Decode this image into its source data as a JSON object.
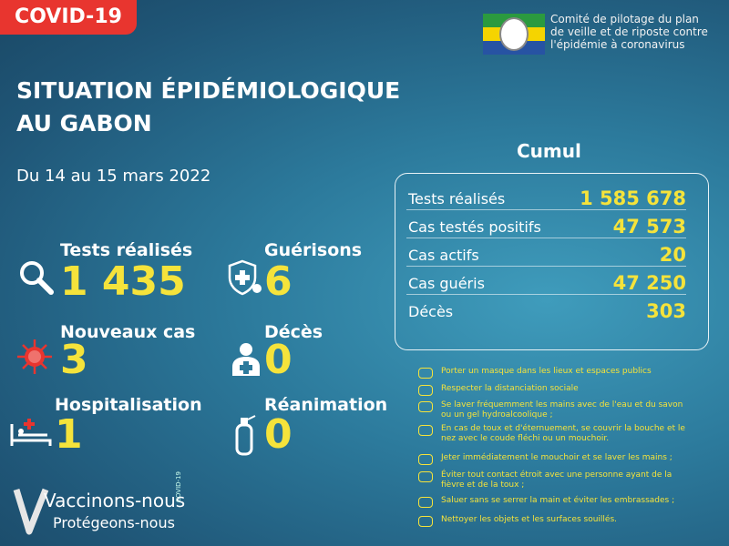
{
  "badge": "COVID-19",
  "organization": {
    "lines": [
      "Comité de pilotage du plan",
      "de veille et de riposte contre",
      "l'épidémie à coronavirus"
    ]
  },
  "title": {
    "lines": [
      "SITUATION ÉPIDÉMIOLOGIQUE",
      "AU GABON"
    ]
  },
  "date": "Du 14 au 15 mars 2022",
  "daily": [
    {
      "label": "Tests réalisés",
      "value": "1 435"
    },
    {
      "label": "Guérisons",
      "value": "6"
    },
    {
      "label": "Nouveaux cas",
      "value": "3"
    },
    {
      "label": "Décès",
      "value": "0"
    },
    {
      "label": "Hospitalisation",
      "value": "1"
    },
    {
      "label": "Réanimation",
      "value": "0"
    }
  ],
  "cumul": {
    "title": "Cumul",
    "rows": [
      {
        "label": "Tests réalisés",
        "value": "1 585 678"
      },
      {
        "label": "Cas testés positifs",
        "value": "47 573"
      },
      {
        "label": "Cas actifs",
        "value": "20"
      },
      {
        "label": "Cas guéris",
        "value": "47 250"
      },
      {
        "label": "Décès",
        "value": "303"
      }
    ]
  },
  "prevention": [
    "Porter un masque dans les lieux et espaces publics",
    "Respecter la distanciation sociale",
    "Se laver fréquemment les mains avec de l'eau et du savon ou un gel hydroalcoolique ;",
    "En cas de toux et d'éternuement, se couvrir la bouche et le nez avec le coude fléchi ou un mouchoir.",
    "Jeter immédiatement le mouchoir et se laver les mains ;",
    "Éviter tout contact étroit avec une personne ayant de la fièvre et de la toux ;",
    "Saluer sans se serrer la main et éviter les embrassades ;",
    "Nettoyer les objets et les surfaces souillés."
  ],
  "campaign": {
    "line1": "Vaccinons-nous",
    "line2": "Protégeons-nous",
    "tag": "COVID-19"
  }
}
